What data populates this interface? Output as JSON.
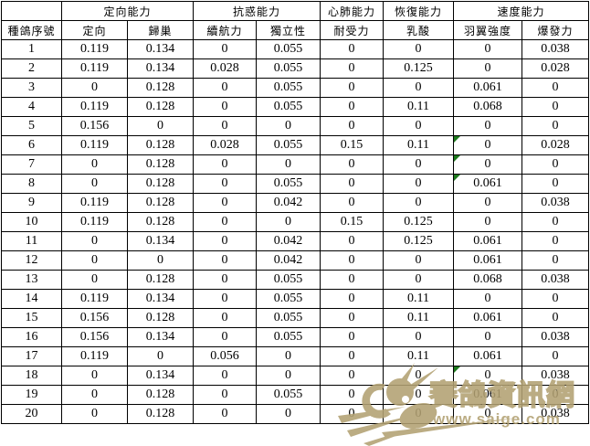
{
  "header": {
    "corner_label": "",
    "row_header_label": "種鴿序號",
    "groups": [
      {
        "label": "定向能力",
        "span": 2
      },
      {
        "label": "抗惑能力",
        "span": 2
      },
      {
        "label": "心肺能力",
        "span": 1
      },
      {
        "label": "恢復能力",
        "span": 1
      },
      {
        "label": "速度能力",
        "span": 2
      }
    ],
    "columns": [
      "定向",
      "歸巢",
      "續航力",
      "獨立性",
      "耐受力",
      "乳酸",
      "羽翼強度",
      "爆發力"
    ]
  },
  "table": {
    "rows": [
      {
        "id": "1",
        "values": [
          "0.119",
          "0.134",
          "0",
          "0.055",
          "0",
          "0",
          "0",
          "0.038"
        ]
      },
      {
        "id": "2",
        "values": [
          "0.119",
          "0.134",
          "0.028",
          "0.055",
          "0",
          "0.125",
          "0",
          "0.028"
        ]
      },
      {
        "id": "3",
        "values": [
          "0",
          "0.128",
          "0",
          "0.055",
          "0",
          "0",
          "0.061",
          "0"
        ]
      },
      {
        "id": "4",
        "values": [
          "0.119",
          "0.128",
          "0",
          "0.055",
          "0",
          "0.11",
          "0.068",
          "0"
        ]
      },
      {
        "id": "5",
        "values": [
          "0.156",
          "0",
          "0",
          "0",
          "0",
          "0",
          "0",
          "0"
        ]
      },
      {
        "id": "6",
        "values": [
          "0.119",
          "0.128",
          "0.028",
          "0.055",
          "0.15",
          "0.11",
          "0",
          "0.028"
        ]
      },
      {
        "id": "7",
        "values": [
          "0",
          "0.128",
          "0",
          "0",
          "0",
          "0",
          "0",
          "0"
        ]
      },
      {
        "id": "8",
        "values": [
          "0",
          "0.128",
          "0",
          "0.055",
          "0",
          "0",
          "0.061",
          "0"
        ]
      },
      {
        "id": "9",
        "values": [
          "0.119",
          "0.128",
          "0",
          "0.042",
          "0",
          "0",
          "0",
          "0.038"
        ]
      },
      {
        "id": "10",
        "values": [
          "0.119",
          "0.128",
          "0",
          "0",
          "0.15",
          "0.125",
          "0",
          "0"
        ]
      },
      {
        "id": "11",
        "values": [
          "0",
          "0.134",
          "0",
          "0.042",
          "0",
          "0.125",
          "0.061",
          "0"
        ]
      },
      {
        "id": "12",
        "values": [
          "0",
          "0",
          "0",
          "0.042",
          "0",
          "0",
          "0.061",
          "0"
        ]
      },
      {
        "id": "13",
        "values": [
          "0",
          "0.128",
          "0",
          "0.055",
          "0",
          "0",
          "0.068",
          "0.038"
        ]
      },
      {
        "id": "14",
        "values": [
          "0.119",
          "0.134",
          "0",
          "0.055",
          "0",
          "0.11",
          "0",
          "0"
        ]
      },
      {
        "id": "15",
        "values": [
          "0.156",
          "0.128",
          "0",
          "0.055",
          "0",
          "0.11",
          "0.061",
          "0"
        ]
      },
      {
        "id": "16",
        "values": [
          "0.156",
          "0.134",
          "0",
          "0.055",
          "0",
          "0",
          "0",
          "0.038"
        ]
      },
      {
        "id": "17",
        "values": [
          "0.119",
          "0",
          "0.056",
          "0",
          "0",
          "0.11",
          "0.061",
          "0"
        ]
      },
      {
        "id": "18",
        "values": [
          "0",
          "0.134",
          "0",
          "0",
          "0",
          "0",
          "0",
          "0.038"
        ]
      },
      {
        "id": "19",
        "values": [
          "0",
          "0.128",
          "0",
          "0.055",
          "0",
          "0",
          "0.061",
          "0"
        ]
      },
      {
        "id": "20",
        "values": [
          "0",
          "0.128",
          "0",
          "0",
          "0",
          "0",
          "0",
          "0.038"
        ]
      }
    ],
    "error_flags": [
      {
        "row": 6,
        "col": 6
      },
      {
        "row": 7,
        "col": 6
      },
      {
        "row": 8,
        "col": 6
      },
      {
        "row": 18,
        "col": 6
      }
    ]
  },
  "watermark": {
    "site_name": "賽鴿資訊網",
    "site_url": "www.saige.com"
  },
  "colors": {
    "grid": "#000000",
    "text": "#000000",
    "flag_green": "#1d7a1d",
    "watermark_tan": "#b2a172"
  }
}
